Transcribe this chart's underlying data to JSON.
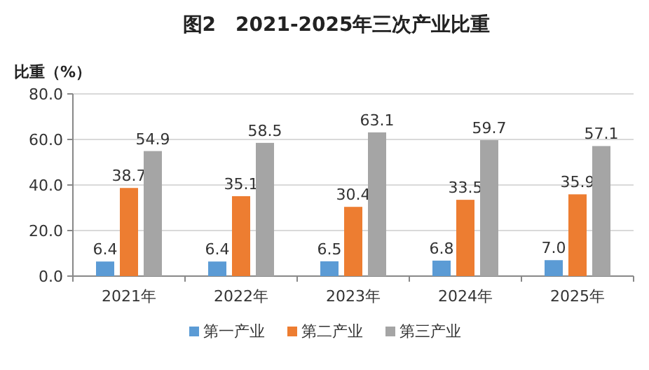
{
  "chart_data": {
    "type": "bar",
    "title": "图2　2021-2025年三次产业比重",
    "ylabel": "比重（%）",
    "categories": [
      "2021年",
      "2022年",
      "2023年",
      "2024年",
      "2025年"
    ],
    "series": [
      {
        "name": "第一产业",
        "color": "#5b9bd5",
        "values": [
          6.4,
          6.4,
          6.5,
          6.8,
          7.0
        ],
        "value_labels": [
          "6.4",
          "6.4",
          "6.5",
          "6.8",
          "7.0"
        ]
      },
      {
        "name": "第二产业",
        "color": "#ed7d31",
        "values": [
          38.7,
          35.1,
          30.4,
          33.5,
          35.9
        ],
        "value_labels": [
          "38.7",
          "35.1",
          "30.4",
          "33.5",
          "35.9"
        ]
      },
      {
        "name": "第三产业",
        "color": "#a5a5a5",
        "values": [
          54.9,
          58.5,
          63.1,
          59.7,
          57.1
        ],
        "value_labels": [
          "54.9",
          "58.5",
          "63.1",
          "59.7",
          "57.1"
        ]
      }
    ],
    "ylim": [
      0,
      80
    ],
    "yticks": [
      {
        "value": 0,
        "label": "0.0"
      },
      {
        "value": 20,
        "label": "20.0"
      },
      {
        "value": 40,
        "label": "40.0"
      },
      {
        "value": 60,
        "label": "60.0"
      },
      {
        "value": 80,
        "label": "80.0"
      }
    ],
    "grid": "y",
    "legend": "bottom"
  }
}
